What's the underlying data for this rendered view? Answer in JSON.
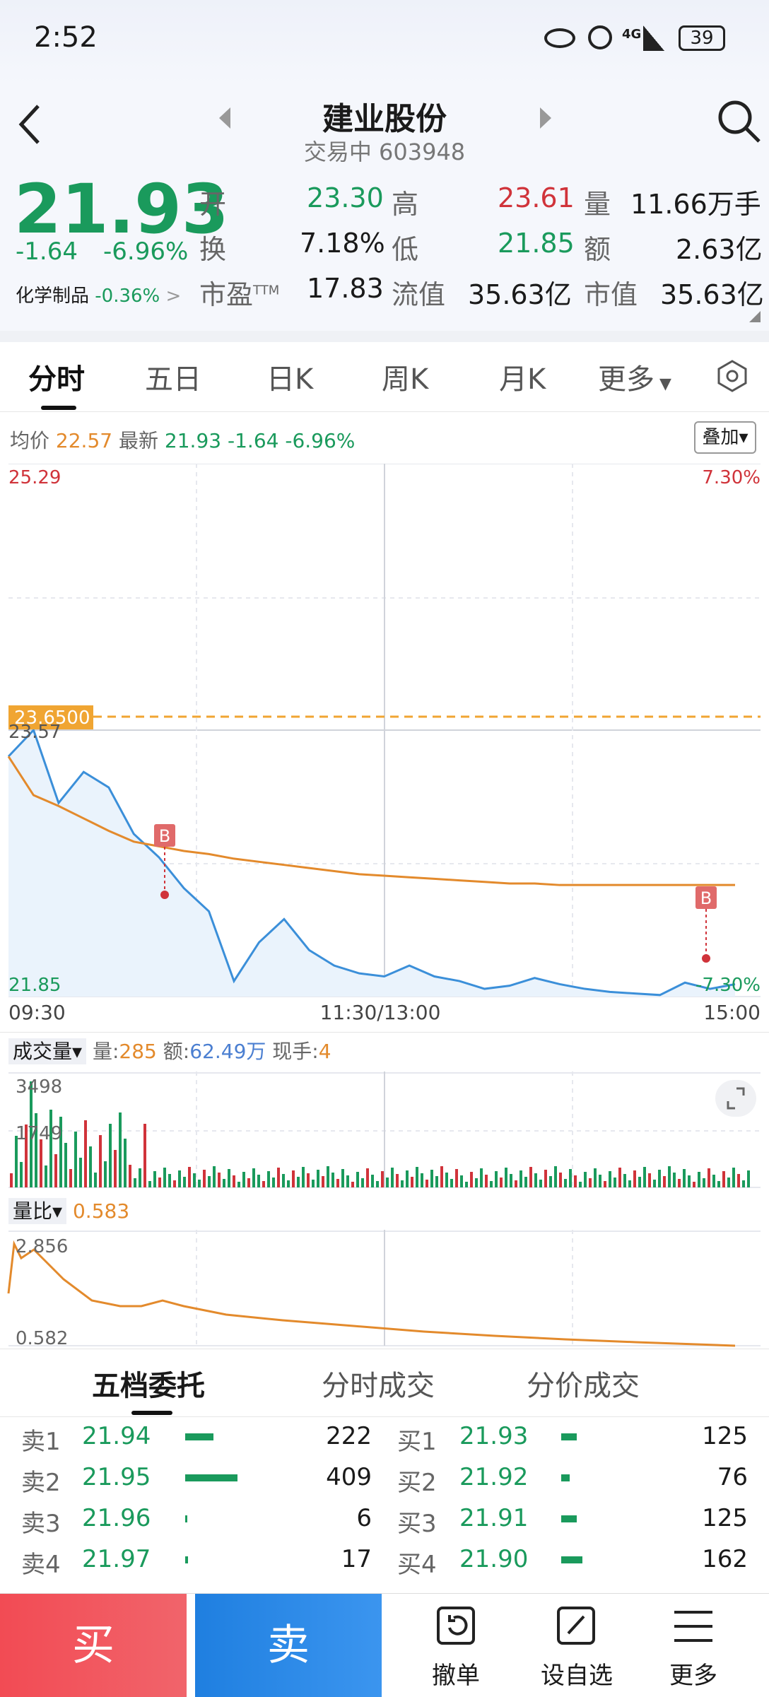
{
  "status": {
    "time": "2:52",
    "battery": "39",
    "network": "4G"
  },
  "header": {
    "name": "建业股份",
    "subtitle": "交易中 603948"
  },
  "quote": {
    "price": "21.93",
    "change": "-1.64",
    "change_pct": "-6.96%",
    "sector": "化学制品",
    "sector_pct": "-0.36%",
    "fields": [
      {
        "k": "开",
        "v": "23.30"
      },
      {
        "k": "高",
        "v": "23.61"
      },
      {
        "k": "量",
        "v": "11.66万手"
      },
      {
        "k": "换",
        "v": "7.18%"
      },
      {
        "k": "低",
        "v": "21.85"
      },
      {
        "k": "额",
        "v": "2.63亿"
      },
      {
        "k": "市盈",
        "sup": "TTM",
        "v": "17.83"
      },
      {
        "k": "流值",
        "v": "35.63亿"
      },
      {
        "k": "市值",
        "v": "35.63亿"
      }
    ]
  },
  "tabs": [
    "分时",
    "五日",
    "日K",
    "周K",
    "月K",
    "更多"
  ],
  "info": {
    "avg_label": "均价",
    "avg": "22.57",
    "last_label": "最新",
    "last": "21.93",
    "chg": "-1.64",
    "pct": "-6.96%",
    "overlay": "叠加"
  },
  "chart": {
    "max": "25.29",
    "max_pct": "7.30%",
    "min": "21.85",
    "min_pct": "-7.30%",
    "ref_line": "23.6500",
    "open_val": "23.57",
    "t_open": "09:30",
    "t_mid": "11:30/13:00",
    "t_close": "15:00",
    "marker": "B"
  },
  "volume": {
    "label": "成交量",
    "vol_label": "量:",
    "vol": "285",
    "amt_label": "额:",
    "amt": "62.49万",
    "cur_label": "现手:",
    "cur": "4",
    "max": "3498",
    "mid": "1749"
  },
  "ratio": {
    "label": "量比",
    "value": "0.583",
    "max": "2.856",
    "min": "0.582"
  },
  "chart_data": {
    "type": "line",
    "x_labels": [
      "09:30",
      "11:30/13:00",
      "15:00"
    ],
    "ylim": [
      21.85,
      25.29
    ],
    "series": [
      {
        "name": "最新",
        "values": [
          23.4,
          23.57,
          23.1,
          23.3,
          23.2,
          22.9,
          22.75,
          22.55,
          22.4,
          21.95,
          22.2,
          22.35,
          22.15,
          22.05,
          22.0,
          21.98,
          22.05,
          21.98,
          21.95,
          21.9,
          21.92,
          21.97,
          21.93,
          21.9,
          21.88,
          21.87,
          21.86,
          21.94,
          21.9,
          21.93
        ]
      },
      {
        "name": "均价",
        "values": [
          23.4,
          23.15,
          23.08,
          23.0,
          22.92,
          22.85,
          22.82,
          22.79,
          22.77,
          22.74,
          22.72,
          22.7,
          22.68,
          22.66,
          22.64,
          22.63,
          22.62,
          22.61,
          22.6,
          22.59,
          22.58,
          22.58,
          22.57,
          22.57,
          22.57,
          22.57,
          22.57,
          22.57,
          22.57,
          22.57
        ]
      }
    ]
  },
  "orderbook": {
    "tabs": [
      "五档委托",
      "分时成交",
      "分价成交"
    ],
    "sells": [
      {
        "l": "卖1",
        "p": "21.94",
        "q": "222"
      },
      {
        "l": "卖2",
        "p": "21.95",
        "q": "409"
      },
      {
        "l": "卖3",
        "p": "21.96",
        "q": "6"
      },
      {
        "l": "卖4",
        "p": "21.97",
        "q": "17"
      }
    ],
    "buys": [
      {
        "l": "买1",
        "p": "21.93",
        "q": "125"
      },
      {
        "l": "买2",
        "p": "21.92",
        "q": "76"
      },
      {
        "l": "买3",
        "p": "21.91",
        "q": "125"
      },
      {
        "l": "买4",
        "p": "21.90",
        "q": "162"
      }
    ]
  },
  "bottom": {
    "buy": "买",
    "sell": "卖",
    "cancel": "撤单",
    "watch": "设自选",
    "more": "更多"
  }
}
